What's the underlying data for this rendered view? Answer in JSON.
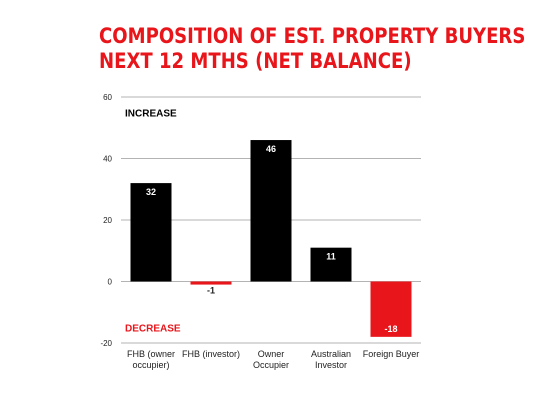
{
  "title_lines": [
    "COMPOSITION OF EST. PROPERTY BUYERS",
    "NEXT 12 MTHS (NET BALANCE)"
  ],
  "chart_data": {
    "type": "bar",
    "title": "COMPOSITION OF EST. PROPERTY BUYERS NEXT 12 MTHS (NET BALANCE)",
    "categories": [
      [
        "FHB (owner",
        "occupier)"
      ],
      [
        "FHB (investor)"
      ],
      [
        "Owner",
        "Occupier"
      ],
      [
        "Australian",
        "Investor"
      ],
      [
        "Foreign Buyer"
      ]
    ],
    "values": [
      32,
      -1,
      46,
      11,
      -18
    ],
    "data_labels": [
      "32",
      "-1",
      "46",
      "11",
      "-18"
    ],
    "bar_colors": [
      "#000000",
      "#e8151a",
      "#000000",
      "#000000",
      "#e8151a"
    ],
    "yticks": [
      60,
      40,
      20,
      0,
      -20
    ],
    "ylim": [
      -20,
      60
    ],
    "grid": true,
    "annotations": [
      {
        "text": "INCREASE",
        "color": "#000000",
        "y": 55
      },
      {
        "text": "DECREASE",
        "color": "#e8151a",
        "y": -15
      }
    ]
  },
  "colors": {
    "accent_red": "#e8151a",
    "bar_black": "#000000",
    "gridline": "#9a9a9a"
  }
}
